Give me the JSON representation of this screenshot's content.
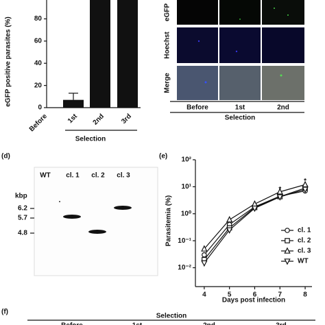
{
  "chart_data": [
    {
      "type": "bar",
      "ylabel": "eGFP positive parasites (%)",
      "xlabel": "Selection",
      "categories": [
        "Before",
        "1st",
        "2nd",
        "3rd"
      ],
      "values": [
        0,
        7,
        100,
        100
      ],
      "errors": [
        null,
        6,
        null,
        null
      ],
      "color": "#111111",
      "ylim": [
        0,
        97
      ],
      "yticks": [
        0,
        20,
        40,
        60,
        80
      ]
    },
    {
      "type": "line",
      "panel_label": "(e)",
      "ylabel": "Parasitemia (%)",
      "xlabel": "Days post infection",
      "x": [
        4,
        5,
        6,
        7,
        8
      ],
      "xlim": [
        3.65,
        8.27
      ],
      "xticks": [
        4,
        5,
        6,
        7,
        8
      ],
      "log_y": true,
      "ylim": [
        0.002,
        100
      ],
      "yticks": [
        {
          "value": 100,
          "label": "10²"
        },
        {
          "value": 10,
          "label": "10¹"
        },
        {
          "value": 1,
          "label": "10⁰"
        },
        {
          "value": 0.1,
          "label": "10⁻¹"
        },
        {
          "value": 0.01,
          "label": "10⁻²"
        }
      ],
      "series": [
        {
          "name": "cl. 1",
          "marker": "circle",
          "color": "#111111",
          "values": [
            0.03,
            0.4,
            1.8,
            4.5,
            7
          ]
        },
        {
          "name": "cl. 2",
          "marker": "square",
          "color": "#111111",
          "values": [
            0.02,
            0.3,
            1.7,
            4.3,
            9
          ]
        },
        {
          "name": "cl. 3",
          "marker": "triangle",
          "color": "#111111",
          "values": [
            0.05,
            0.6,
            2.3,
            6.5,
            12
          ]
        },
        {
          "name": "WT",
          "marker": "triangle-down",
          "color": "#111111",
          "values": [
            0.015,
            0.25,
            1.6,
            4.2,
            8
          ]
        }
      ],
      "annotations": [
        {
          "text": "*",
          "x": 7,
          "y": 8
        },
        {
          "text": "*",
          "x": 8,
          "y": 16
        }
      ]
    }
  ],
  "microscopy": {
    "rows": [
      "eGFP",
      "Hoechst",
      "Merge"
    ],
    "columns": [
      "Before",
      "1st",
      "2nd"
    ],
    "xlabel": "Selection"
  },
  "blot": {
    "panel_label": "(d)",
    "lanes": [
      "WT",
      "cl. 1",
      "cl. 2",
      "cl. 3"
    ],
    "unit": "kbp",
    "markers": [
      6.2,
      5.7,
      4.8
    ]
  },
  "panel_f": {
    "panel_label": "(f)",
    "title": "Selection",
    "columns": [
      "Before",
      "1st",
      "2nd",
      "3rd"
    ]
  }
}
